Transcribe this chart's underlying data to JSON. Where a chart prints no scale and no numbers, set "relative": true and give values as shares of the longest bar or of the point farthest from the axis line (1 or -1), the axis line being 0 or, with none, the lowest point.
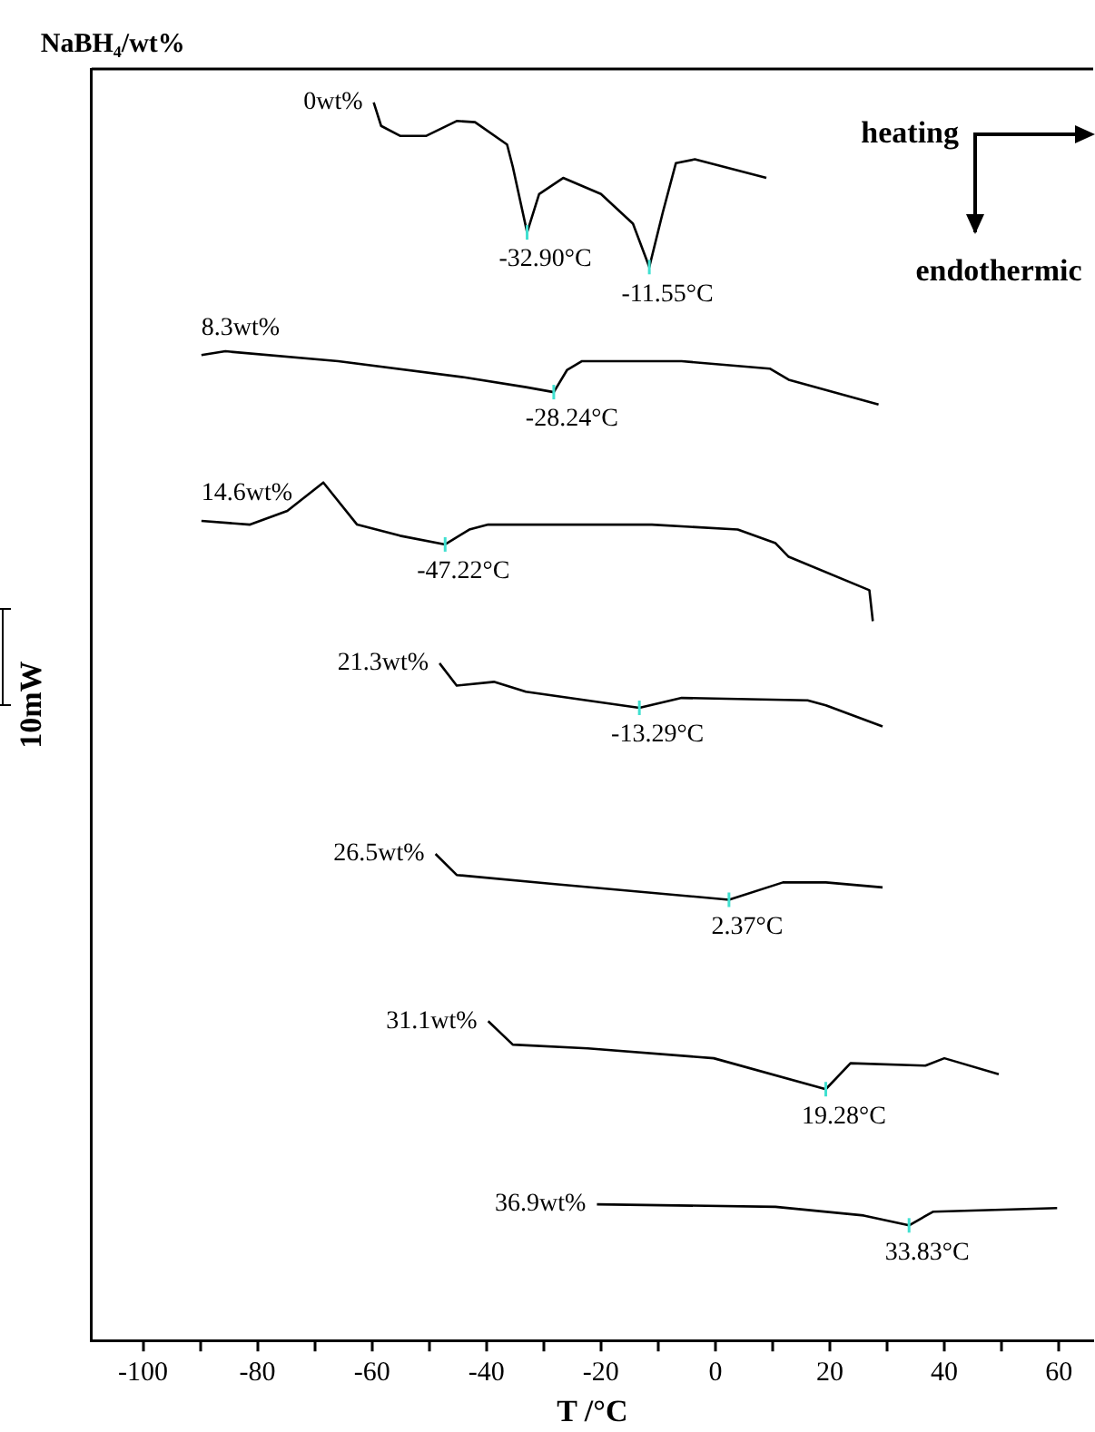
{
  "chart_data": {
    "type": "line",
    "title": "NaBH₄/wt%",
    "xlabel": "T /°C",
    "ylabel": "10mW",
    "relative": true,
    "xlim": [
      -109,
      66
    ],
    "xticks": [
      -100,
      {
        "value": -90,
        "label": null
      },
      -80,
      {
        "value": -70,
        "label": null
      },
      -60,
      {
        "value": -50,
        "label": null
      },
      -40,
      {
        "value": -30,
        "label": null
      },
      -20,
      {
        "value": -10,
        "label": null
      },
      0,
      {
        "value": 10,
        "label": null
      },
      20,
      {
        "value": 30,
        "label": null
      },
      40,
      {
        "value": 50,
        "label": null
      },
      60
    ],
    "grid": false,
    "legend": false,
    "marker": "none",
    "line_style": "solid",
    "series": [
      {
        "name": "0wt%",
        "color": "#000000",
        "x": [
          -59.7,
          -58.4,
          -55.1,
          -50.5,
          -45.2,
          -42.0,
          -36.4,
          -35.4,
          -32.9,
          -30.8,
          -26.6,
          -20.0,
          -14.4,
          -11.55,
          -9.2,
          -6.9,
          -3.6,
          8.9
        ],
        "values": [
          1.0,
          0.981,
          0.973,
          0.973,
          0.985,
          0.984,
          0.966,
          0.948,
          0.895,
          0.926,
          0.939,
          0.926,
          0.902,
          0.867,
          0.911,
          0.951,
          0.954,
          0.939
        ]
      },
      {
        "name": "8.3wt%",
        "color": "#000000",
        "x": [
          -89.8,
          -85.6,
          -65.9,
          -43.9,
          -33.1,
          -28.24,
          -25.9,
          -23.3,
          -5.9,
          9.5,
          12.8,
          28.5
        ],
        "values": [
          0.796,
          0.799,
          0.791,
          0.778,
          0.77,
          0.766,
          0.784,
          0.791,
          0.791,
          0.785,
          0.776,
          0.756
        ]
      },
      {
        "name": "14.6wt%",
        "color": "#000000",
        "x": [
          -89.8,
          -81.3,
          -74.8,
          -68.5,
          -62.6,
          -55.1,
          -47.22,
          -43.0,
          -39.7,
          -11.1,
          3.9,
          10.5,
          12.8,
          26.9,
          27.5
        ],
        "values": [
          0.662,
          0.659,
          0.67,
          0.693,
          0.659,
          0.65,
          0.643,
          0.655,
          0.659,
          0.659,
          0.655,
          0.644,
          0.633,
          0.606,
          0.581
        ]
      },
      {
        "name": "21.3wt%",
        "color": "#000000",
        "x": [
          -48.2,
          -45.2,
          -38.7,
          -33.1,
          -13.29,
          -5.9,
          16.1,
          19.3,
          29.2
        ],
        "values": [
          0.547,
          0.529,
          0.532,
          0.524,
          0.511,
          0.519,
          0.517,
          0.513,
          0.496
        ]
      },
      {
        "name": "26.5wt%",
        "color": "#000000",
        "x": [
          -48.9,
          -45.2,
          -28.9,
          2.37,
          11.8,
          19.3,
          29.2
        ],
        "values": [
          0.393,
          0.376,
          0.369,
          0.356,
          0.37,
          0.37,
          0.366
        ]
      },
      {
        "name": "31.1wt%",
        "color": "#000000",
        "x": [
          -39.7,
          -35.4,
          -22.3,
          -0.3,
          19.28,
          23.6,
          36.7,
          40.0,
          49.5
        ],
        "values": [
          0.258,
          0.239,
          0.236,
          0.228,
          0.203,
          0.224,
          0.222,
          0.228,
          0.215
        ]
      },
      {
        "name": "36.9wt%",
        "color": "#000000",
        "x": [
          -20.7,
          10.5,
          25.9,
          33.83,
          38.0,
          59.7
        ],
        "values": [
          0.11,
          0.108,
          0.101,
          0.093,
          0.104,
          0.107
        ]
      }
    ],
    "annotations": [
      {
        "text": "-32.90°C",
        "x": -32.9,
        "y": 0.895
      },
      {
        "text": "-11.55°C",
        "x": -11.55,
        "y": 0.867
      },
      {
        "text": "-28.24°C",
        "x": -28.24,
        "y": 0.766
      },
      {
        "text": "-47.22°C",
        "x": -47.22,
        "y": 0.643
      },
      {
        "text": "-13.29°C",
        "x": -13.29,
        "y": 0.511
      },
      {
        "text": "2.37°C",
        "x": 2.37,
        "y": 0.356
      },
      {
        "text": "19.28°C",
        "x": 19.28,
        "y": 0.203
      },
      {
        "text": "33.83°C",
        "x": 33.83,
        "y": 0.093
      },
      "heating",
      "endothermic"
    ]
  }
}
